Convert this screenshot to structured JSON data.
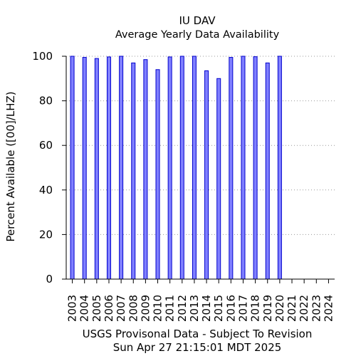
{
  "chart_data": {
    "type": "bar",
    "title": "IU DAV",
    "subtitle": "Average Yearly Data Availability",
    "ylabel": "Percent Available ([00]/LHZ)",
    "xlabel": "USGS Provisonal Data - Subject To Revision",
    "timestamp": "Sun Apr 27 21:15:01 MDT 2025",
    "ylim": [
      0,
      100
    ],
    "yticks": [
      0,
      20,
      40,
      60,
      80,
      100
    ],
    "grid": true,
    "categories": [
      "2003",
      "2004",
      "2005",
      "2006",
      "2007",
      "2008",
      "2009",
      "2010",
      "2011",
      "2012",
      "2013",
      "2014",
      "2015",
      "2016",
      "2017",
      "2018",
      "2019",
      "2020",
      "2021",
      "2022",
      "2023",
      "2024"
    ],
    "values": [
      100,
      99.5,
      99,
      99.7,
      100,
      97,
      98.5,
      94,
      99.7,
      100,
      100,
      93.5,
      90,
      99.5,
      100,
      99.8,
      97,
      100,
      null,
      null,
      null,
      null
    ],
    "colors": {
      "bar_fill": "#8080ff",
      "bar_stroke": "#0000cc",
      "grid": "#999999",
      "axis": "#000000"
    }
  }
}
